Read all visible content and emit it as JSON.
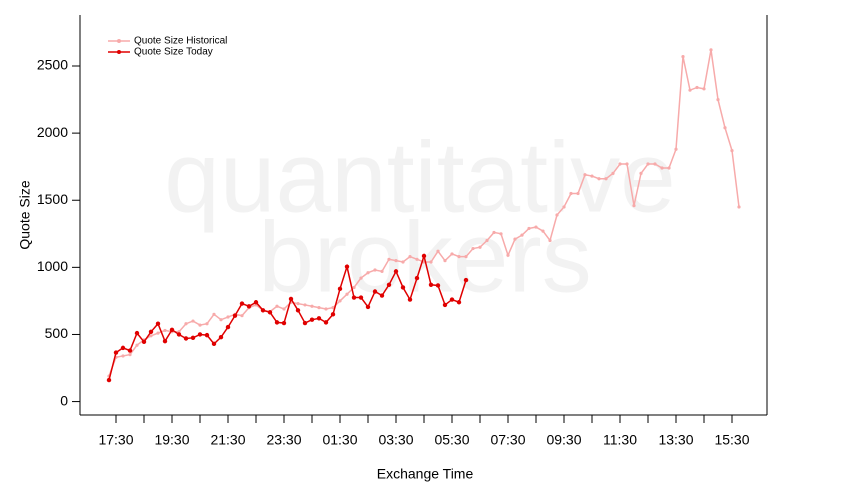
{
  "chart_data": {
    "type": "line",
    "watermark": [
      "quantitative",
      "brokers"
    ],
    "xlabel": "Exchange Time",
    "ylabel": "Quote Size",
    "categories": [
      null,
      "17:30",
      null,
      null,
      null,
      null,
      null,
      null,
      null,
      "19:30",
      null,
      null,
      null,
      null,
      null,
      null,
      null,
      "21:30",
      null,
      null,
      null,
      null,
      null,
      null,
      null,
      "23:30",
      null,
      null,
      null,
      null,
      null,
      null,
      null,
      "01:30",
      null,
      null,
      null,
      null,
      null,
      null,
      null,
      "03:30",
      null,
      null,
      null,
      null,
      null,
      null,
      null,
      "05:30",
      null,
      null,
      null,
      null,
      null,
      null,
      null,
      "07:30",
      null,
      null,
      null,
      null,
      null,
      null,
      null,
      "09:30",
      null,
      null,
      null,
      null,
      null,
      null,
      null,
      "11:30",
      null,
      null,
      null,
      null,
      null,
      null,
      null,
      "13:30",
      null,
      null,
      null,
      null,
      null,
      null,
      null,
      "15:30",
      null
    ],
    "series": [
      {
        "name": "Quote Size Historical",
        "color": "#f7aaaa",
        "values": [
          190,
          330,
          340,
          350,
          420,
          460,
          490,
          510,
          530,
          520,
          520,
          580,
          600,
          570,
          580,
          650,
          610,
          630,
          650,
          640,
          700,
          720,
          680,
          670,
          710,
          690,
          740,
          730,
          720,
          710,
          700,
          690,
          700,
          750,
          800,
          850,
          920,
          960,
          980,
          970,
          1060,
          1050,
          1040,
          1080,
          1060,
          1040,
          1040,
          1120,
          1050,
          1100,
          1080,
          1080,
          1140,
          1150,
          1200,
          1260,
          1250,
          1090,
          1210,
          1240,
          1290,
          1300,
          1270,
          1200,
          1390,
          1450,
          1550,
          1550,
          1690,
          1680,
          1660,
          1660,
          1700,
          1770,
          1770,
          1460,
          1700,
          1770,
          1770,
          1740,
          1740,
          1880,
          2570,
          2320,
          2340,
          2330,
          2620,
          2250,
          2040,
          1870,
          1450
        ]
      },
      {
        "name": "Quote Size Today",
        "color": "#e00000",
        "values": [
          160,
          365,
          400,
          380,
          510,
          445,
          520,
          580,
          450,
          535,
          500,
          470,
          475,
          500,
          495,
          430,
          480,
          555,
          640,
          730,
          710,
          740,
          680,
          665,
          590,
          585,
          765,
          680,
          585,
          610,
          620,
          590,
          650,
          840,
          1005,
          775,
          775,
          705,
          820,
          790,
          870,
          970,
          850,
          760,
          920,
          1085,
          870,
          865,
          720,
          760,
          740,
          905,
          null,
          null,
          null,
          null,
          null,
          null,
          null,
          null,
          null,
          null,
          null,
          null,
          null,
          null,
          null,
          null,
          null,
          null,
          null,
          null,
          null,
          null,
          null,
          null,
          null,
          null,
          null,
          null,
          null,
          null,
          null,
          null,
          null,
          null,
          null,
          null,
          null,
          null,
          null
        ]
      }
    ],
    "ylim": [
      -100,
      2880
    ],
    "yticks": [
      0,
      500,
      1000,
      1500,
      2000,
      2500
    ],
    "legend": "upper left"
  }
}
